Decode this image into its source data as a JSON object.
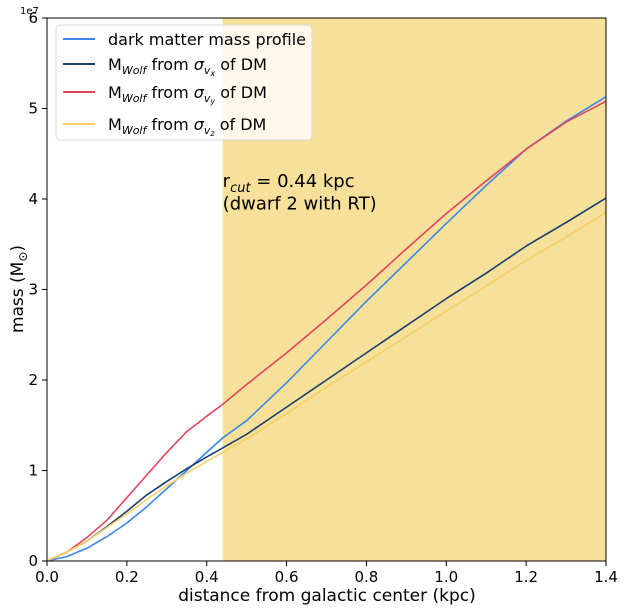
{
  "chart_data": {
    "type": "line",
    "xlabel": "distance from galactic center (kpc)",
    "ylabel_main": "mass (M",
    "ylabel_sub": "⊙",
    "ylabel_close": ")",
    "y_offset_label": "1e7",
    "xlim": [
      0.0,
      1.4
    ],
    "ylim": [
      0,
      6
    ],
    "x_ticks": [
      0.0,
      0.2,
      0.4,
      0.6,
      0.8,
      1.0,
      1.2,
      1.4
    ],
    "x_tick_labels": [
      "0.0",
      "0.2",
      "0.4",
      "0.6",
      "0.8",
      "1.0",
      "1.2",
      "1.4"
    ],
    "y_ticks": [
      0,
      1,
      2,
      3,
      4,
      5,
      6
    ],
    "y_tick_labels": [
      "0",
      "1",
      "2",
      "3",
      "4",
      "5",
      "6"
    ],
    "shaded_region": {
      "x_start": 0.44,
      "x_end": 1.4,
      "color": "#f7e09a"
    },
    "annotation": {
      "line1_main": "r",
      "line1_sub": "cut",
      "line1_rest": " = 0.44 kpc",
      "line2": "(dwarf 2 with RT)",
      "x": 0.44,
      "y1": 4.2,
      "y2": 3.95
    },
    "legend_position": "upper-left",
    "series": [
      {
        "name": "dark matter mass profile",
        "color": "#3a86e8",
        "x": [
          0.0,
          0.05,
          0.1,
          0.15,
          0.2,
          0.25,
          0.3,
          0.35,
          0.4,
          0.44,
          0.5,
          0.6,
          0.7,
          0.8,
          0.9,
          1.0,
          1.1,
          1.2,
          1.3,
          1.4
        ],
        "y": [
          0.0,
          0.05,
          0.14,
          0.27,
          0.42,
          0.6,
          0.8,
          1.0,
          1.2,
          1.36,
          1.55,
          1.97,
          2.42,
          2.87,
          3.3,
          3.73,
          4.15,
          4.55,
          4.86,
          5.13
        ]
      },
      {
        "name": "from of DM",
        "legend_parts": {
          "main": "M",
          "sub": "Wolf",
          "mid": " from ",
          "sigma": "σ",
          "sigma_sub": "v",
          "sigma_subsub": "x",
          "end": " of DM"
        },
        "color": "#1b3f6b",
        "x": [
          0.0,
          0.05,
          0.1,
          0.15,
          0.2,
          0.25,
          0.3,
          0.35,
          0.4,
          0.44,
          0.5,
          0.6,
          0.7,
          0.8,
          0.9,
          1.0,
          1.1,
          1.2,
          1.3,
          1.4
        ],
        "y": [
          0.0,
          0.1,
          0.22,
          0.38,
          0.55,
          0.73,
          0.88,
          1.02,
          1.15,
          1.25,
          1.4,
          1.7,
          2.0,
          2.3,
          2.6,
          2.9,
          3.18,
          3.48,
          3.74,
          4.01
        ]
      },
      {
        "name": "from of DM",
        "legend_parts": {
          "main": "M",
          "sub": "Wolf",
          "mid": " from ",
          "sigma": "σ",
          "sigma_sub": "v",
          "sigma_subsub": "y",
          "end": " of DM"
        },
        "color": "#e2455b",
        "x": [
          0.0,
          0.05,
          0.1,
          0.15,
          0.2,
          0.25,
          0.3,
          0.35,
          0.4,
          0.44,
          0.5,
          0.6,
          0.7,
          0.8,
          0.9,
          1.0,
          1.1,
          1.2,
          1.3,
          1.4
        ],
        "y": [
          0.0,
          0.1,
          0.26,
          0.45,
          0.7,
          0.95,
          1.2,
          1.43,
          1.6,
          1.73,
          1.95,
          2.3,
          2.67,
          3.05,
          3.45,
          3.84,
          4.2,
          4.55,
          4.85,
          5.08
        ]
      },
      {
        "name": "from of DM",
        "legend_parts": {
          "main": "M",
          "sub": "Wolf",
          "mid": " from ",
          "sigma": "σ",
          "sigma_sub": "v",
          "sigma_subsub": "z",
          "end": " of DM"
        },
        "color": "#f5cf66",
        "x": [
          0.0,
          0.05,
          0.1,
          0.15,
          0.2,
          0.25,
          0.3,
          0.35,
          0.4,
          0.44,
          0.5,
          0.6,
          0.7,
          0.8,
          0.9,
          1.0,
          1.1,
          1.2,
          1.3,
          1.4
        ],
        "y": [
          0.0,
          0.1,
          0.22,
          0.37,
          0.52,
          0.68,
          0.83,
          0.97,
          1.1,
          1.2,
          1.35,
          1.63,
          1.92,
          2.2,
          2.48,
          2.76,
          3.04,
          3.32,
          3.58,
          3.85
        ]
      }
    ]
  }
}
